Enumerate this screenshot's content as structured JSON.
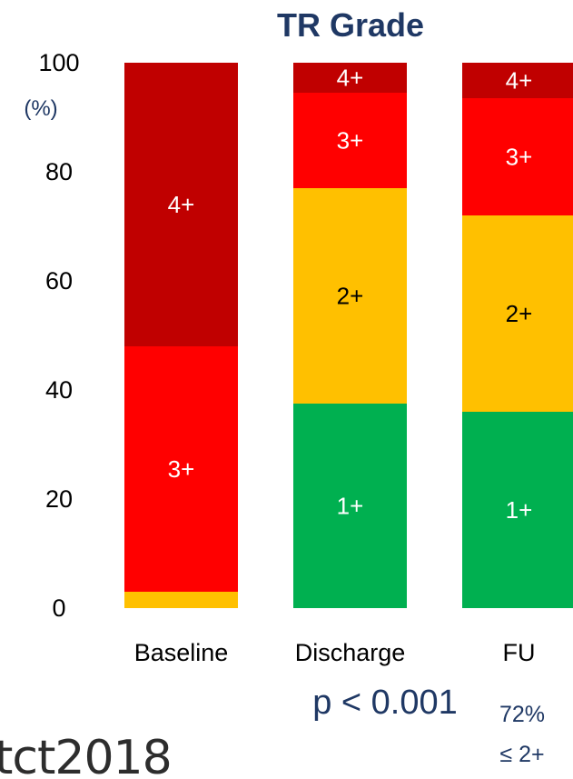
{
  "chart_data": {
    "type": "bar",
    "stacked": true,
    "title": "TR Grade",
    "y_unit_label": "(%)",
    "ylim": [
      0,
      100
    ],
    "yticks": [
      0,
      20,
      40,
      60,
      80,
      100
    ],
    "categories": [
      "Baseline",
      "Discharge",
      "FU"
    ],
    "series": [
      {
        "grade": "1+",
        "color": "#00b050",
        "values": [
          0,
          37.5,
          36
        ],
        "labels": [
          "",
          "1+",
          "1+"
        ]
      },
      {
        "grade": "2+",
        "color": "#ffc000",
        "values": [
          3,
          39.5,
          36
        ],
        "labels": [
          "",
          "2+",
          "2+"
        ]
      },
      {
        "grade": "3+",
        "color": "#ff0000",
        "values": [
          45,
          17.5,
          21.5
        ],
        "labels": [
          "3+",
          "3+",
          "3+"
        ]
      },
      {
        "grade": "4+",
        "color": "#c00000",
        "values": [
          52,
          5.5,
          6.5
        ],
        "labels": [
          "4+",
          "4+",
          "4+"
        ]
      }
    ],
    "label_colors": {
      "1+": "#ffffff",
      "2+": "#000000",
      "3+": "#ffffff",
      "4+": "#ffffff"
    },
    "annotations": {
      "p_value": "p < 0.001",
      "fu_note_line1": "72%",
      "fu_note_line2": "≤ 2+"
    }
  },
  "logo": {
    "text": "tct2018"
  }
}
